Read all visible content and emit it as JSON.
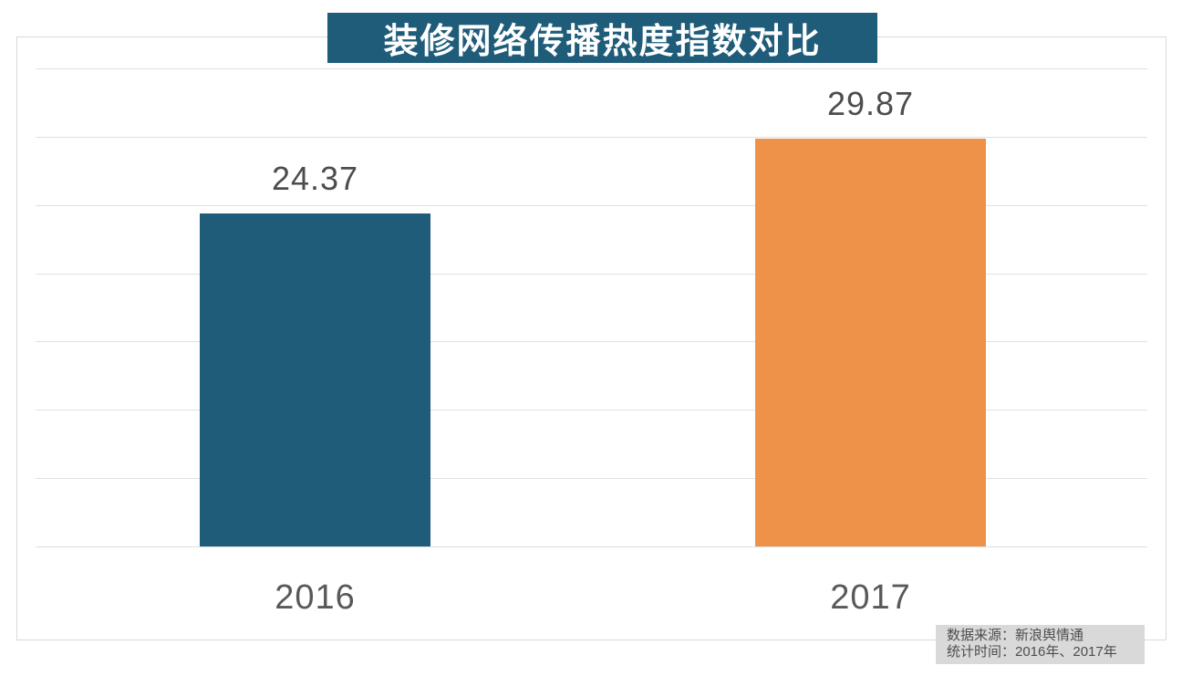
{
  "header": {
    "title": "装修网络传播热度指数对比",
    "bg_color": "#1F5C7A",
    "text_color": "#FFFFFF"
  },
  "footer": {
    "source_line": "数据来源：新浪舆情通",
    "period_line": "统计时间：2016年、2017年",
    "bg_color": "#D9D9D9",
    "text_color": "#4D4D4D"
  },
  "chart_data": {
    "type": "bar",
    "title": "装修网络传播热度指数对比",
    "categories": [
      "2016",
      "2017"
    ],
    "values": [
      24.37,
      29.87
    ],
    "value_labels": [
      "24.37",
      "29.87"
    ],
    "series_colors": [
      "#1F5C7A",
      "#EF9249"
    ],
    "ylim": [
      0,
      35
    ],
    "grid_interval": 5,
    "grid": "on",
    "y_axis_tick_labels": "hidden",
    "legend": "none",
    "xlabel": "",
    "ylabel": "",
    "gridline_color": "#E0E0E0",
    "frame_color": "#D9D9D9",
    "value_label_color": "#4D4D4D",
    "axis_label_color": "#595959"
  }
}
